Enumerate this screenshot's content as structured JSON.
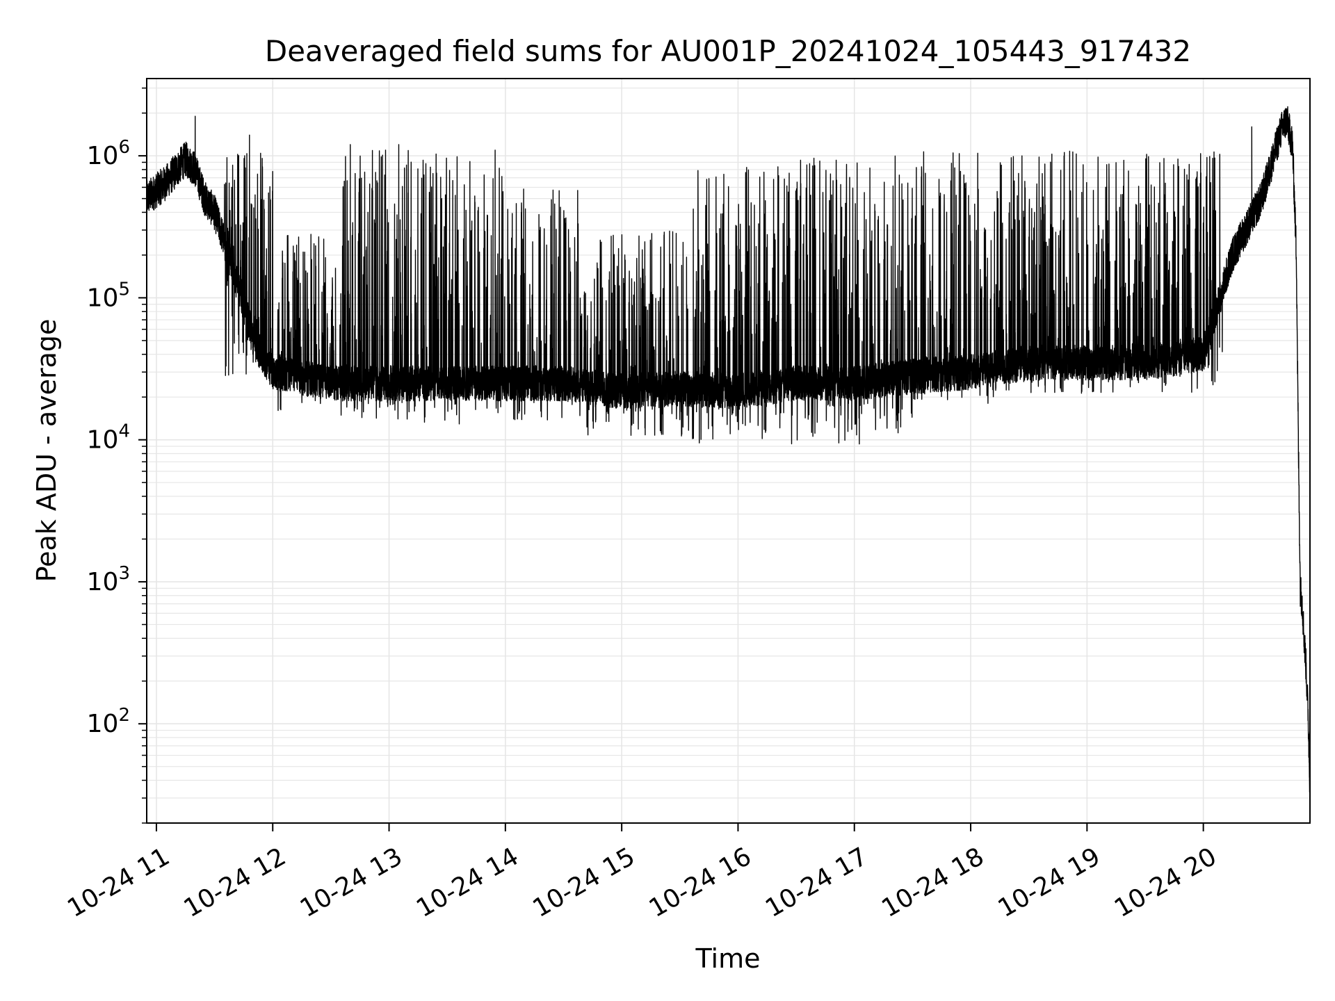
{
  "chart_data": {
    "type": "line",
    "title": "Deaveraged field sums for AU001P_20241024_105443_917432",
    "xlabel": "Time",
    "ylabel": "Peak ADU - average",
    "y_scale": "log",
    "ylim": [
      20,
      3500000
    ],
    "xlim": [
      "2024-10-24 10:55",
      "2024-10-24 20:55"
    ],
    "grid": "major and minor",
    "line_color": "#000000",
    "grid_color": "#e6e6e6",
    "x_ticks": [
      {
        "value": "2024-10-24 11:00",
        "label": "10-24 11"
      },
      {
        "value": "2024-10-24 12:00",
        "label": "10-24 12"
      },
      {
        "value": "2024-10-24 13:00",
        "label": "10-24 13"
      },
      {
        "value": "2024-10-24 14:00",
        "label": "10-24 14"
      },
      {
        "value": "2024-10-24 15:00",
        "label": "10-24 15"
      },
      {
        "value": "2024-10-24 16:00",
        "label": "10-24 16"
      },
      {
        "value": "2024-10-24 17:00",
        "label": "10-24 17"
      },
      {
        "value": "2024-10-24 18:00",
        "label": "10-24 18"
      },
      {
        "value": "2024-10-24 19:00",
        "label": "10-24 19"
      },
      {
        "value": "2024-10-24 20:00",
        "label": "10-24 20"
      }
    ],
    "y_ticks": [
      {
        "value": 100,
        "base": "10",
        "exp": "2"
      },
      {
        "value": 1000,
        "base": "10",
        "exp": "3"
      },
      {
        "value": 10000,
        "base": "10",
        "exp": "4"
      },
      {
        "value": 100000,
        "base": "10",
        "exp": "5"
      },
      {
        "value": 1000000,
        "base": "10",
        "exp": "6"
      }
    ],
    "series": [
      {
        "points": [
          [
            "2024-10-24 10:55",
            500000
          ],
          [
            "2024-10-24 11:05",
            650000
          ],
          [
            "2024-10-24 11:15",
            950000
          ],
          [
            "2024-10-24 11:20",
            800000
          ],
          [
            "2024-10-24 11:25",
            500000
          ],
          [
            "2024-10-24 11:30",
            400000
          ],
          [
            "2024-10-24 11:35",
            250000
          ],
          [
            "2024-10-24 11:40",
            150000
          ],
          [
            "2024-10-24 11:45",
            90000
          ],
          [
            "2024-10-24 11:50",
            50000
          ],
          [
            "2024-10-24 12:00",
            30000
          ],
          [
            "2024-10-24 12:30",
            25000
          ],
          [
            "2024-10-24 13:00",
            25000
          ],
          [
            "2024-10-24 13:30",
            25000
          ],
          [
            "2024-10-24 14:00",
            25000
          ],
          [
            "2024-10-24 14:30",
            25000
          ],
          [
            "2024-10-24 15:00",
            22000
          ],
          [
            "2024-10-24 15:30",
            23000
          ],
          [
            "2024-10-24 16:00",
            22000
          ],
          [
            "2024-10-24 16:30",
            25000
          ],
          [
            "2024-10-24 17:00",
            25000
          ],
          [
            "2024-10-24 17:30",
            28000
          ],
          [
            "2024-10-24 18:00",
            30000
          ],
          [
            "2024-10-24 18:30",
            35000
          ],
          [
            "2024-10-24 19:00",
            35000
          ],
          [
            "2024-10-24 19:30",
            35000
          ],
          [
            "2024-10-24 20:00",
            40000
          ],
          [
            "2024-10-24 20:15",
            200000
          ],
          [
            "2024-10-24 20:30",
            500000
          ],
          [
            "2024-10-24 20:40",
            1500000
          ],
          [
            "2024-10-24 20:43",
            1800000
          ],
          [
            "2024-10-24 20:46",
            1200000
          ],
          [
            "2024-10-24 20:48",
            200000
          ],
          [
            "2024-10-24 20:49",
            10000
          ],
          [
            "2024-10-24 20:50",
            900
          ],
          [
            "2024-10-24 20:51",
            700
          ],
          [
            "2024-10-24 20:52",
            400
          ],
          [
            "2024-10-24 20:53",
            250
          ],
          [
            "2024-10-24 20:54",
            120
          ],
          [
            "2024-10-24 20:55",
            35
          ]
        ],
        "bursts": [
          {
            "from": "2024-10-24 11:35",
            "to": "2024-10-24 12:00",
            "high": 1300000,
            "low": 40000
          },
          {
            "from": "2024-10-24 12:00",
            "to": "2024-10-24 12:35",
            "high": 300000,
            "low": 22000
          },
          {
            "from": "2024-10-24 12:35",
            "to": "2024-10-24 13:00",
            "high": 1100000,
            "low": 20000
          },
          {
            "from": "2024-10-24 13:00",
            "to": "2024-10-24 14:00",
            "high": 1100000,
            "low": 18000
          },
          {
            "from": "2024-10-24 14:00",
            "to": "2024-10-24 14:40",
            "high": 600000,
            "low": 18000
          },
          {
            "from": "2024-10-24 14:40",
            "to": "2024-10-24 15:35",
            "high": 300000,
            "low": 15000
          },
          {
            "from": "2024-10-24 15:35",
            "to": "2024-10-24 16:20",
            "high": 900000,
            "low": 14000
          },
          {
            "from": "2024-10-24 16:20",
            "to": "2024-10-24 17:30",
            "high": 1000000,
            "low": 13000
          },
          {
            "from": "2024-10-24 17:30",
            "to": "2024-10-24 18:30",
            "high": 1100000,
            "low": 25000
          },
          {
            "from": "2024-10-24 18:30",
            "to": "2024-10-24 20:10",
            "high": 1100000,
            "low": 30000
          }
        ],
        "spikes": [
          [
            "2024-10-24 11:20",
            1900000
          ],
          [
            "2024-10-24 11:48",
            1400000
          ],
          [
            "2024-10-24 12:40",
            1200000
          ],
          [
            "2024-10-24 13:05",
            1200000
          ],
          [
            "2024-10-24 15:40",
            9500
          ],
          [
            "2024-10-24 16:52",
            9500
          ],
          [
            "2024-10-24 20:25",
            1600000
          ],
          [
            "2024-10-24 20:43",
            2100000
          ]
        ]
      }
    ]
  }
}
